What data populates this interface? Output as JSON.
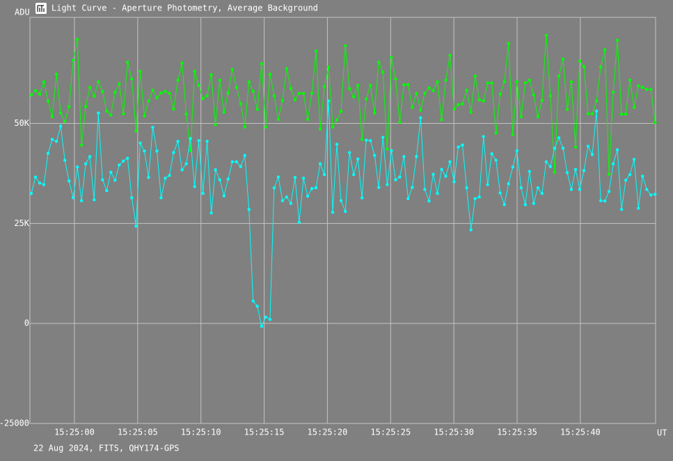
{
  "chart_data": {
    "type": "line",
    "title": "Light Curve - Aperture Photometry, Average Background",
    "y_label": "ADU",
    "x_label": "UT",
    "footer": "22 Aug 2024, FITS, QHY174-GPS",
    "grid": true,
    "xlim": [
      -3.52,
      45.95
    ],
    "ylim": [
      -25000,
      76500
    ],
    "xticks": [
      {
        "value": 0,
        "label": "15:25:00"
      },
      {
        "value": 5,
        "label": "15:25:05"
      },
      {
        "value": 10,
        "label": "15:25:10"
      },
      {
        "value": 15,
        "label": "15:25:15"
      },
      {
        "value": 20,
        "label": "15:25:20"
      },
      {
        "value": 25,
        "label": "15:25:25"
      },
      {
        "value": 30,
        "label": "15:25:30"
      },
      {
        "value": 35,
        "label": "15:25:35"
      },
      {
        "value": 40,
        "label": "15:25:40"
      }
    ],
    "yticks": [
      {
        "value": 50000,
        "label": "50K"
      },
      {
        "value": 25000,
        "label": "25K"
      },
      0,
      -25000
    ],
    "x": [
      -3.41,
      -3.08,
      -2.75,
      -2.42,
      -2.09,
      -1.76,
      -1.42,
      -1.09,
      -0.76,
      -0.43,
      -0.1,
      0.23,
      0.56,
      0.89,
      1.22,
      1.56,
      1.89,
      2.22,
      2.55,
      2.88,
      3.21,
      3.54,
      3.87,
      4.2,
      4.53,
      4.87,
      5.2,
      5.53,
      5.86,
      6.19,
      6.52,
      6.85,
      7.18,
      7.51,
      7.84,
      8.18,
      8.51,
      8.84,
      9.17,
      9.5,
      9.83,
      10.16,
      10.49,
      10.82,
      11.15,
      11.49,
      11.82,
      12.15,
      12.48,
      12.81,
      13.14,
      13.47,
      13.8,
      14.13,
      14.46,
      14.8,
      15.13,
      15.46,
      15.79,
      16.12,
      16.45,
      16.78,
      17.11,
      17.44,
      17.77,
      18.11,
      18.44,
      18.77,
      19.1,
      19.43,
      19.76,
      20.09,
      20.42,
      20.75,
      21.08,
      21.42,
      21.75,
      22.08,
      22.41,
      22.74,
      23.07,
      23.4,
      23.73,
      24.06,
      24.39,
      24.73,
      25.06,
      25.39,
      25.72,
      26.05,
      26.38,
      26.71,
      27.04,
      27.37,
      27.7,
      28.04,
      28.37,
      28.7,
      29.03,
      29.36,
      29.69,
      30.02,
      30.35,
      30.68,
      31.01,
      31.35,
      31.68,
      32.01,
      32.34,
      32.67,
      33.0,
      33.33,
      33.66,
      33.99,
      34.32,
      34.66,
      34.99,
      35.32,
      35.65,
      35.98,
      36.31,
      36.64,
      36.97,
      37.3,
      37.63,
      37.97,
      38.3,
      38.63,
      38.96,
      39.29,
      39.62,
      39.95,
      40.28,
      40.61,
      40.94,
      41.28,
      41.61,
      41.94,
      42.27,
      42.6,
      42.93,
      43.26,
      43.59,
      43.92,
      44.25,
      44.59,
      44.92,
      45.25,
      45.58,
      45.91
    ],
    "series": [
      {
        "color": "#00ff00",
        "values": [
          57100,
          58200,
          57300,
          60400,
          55600,
          51700,
          62300,
          52600,
          50500,
          54200,
          65800,
          71000,
          44600,
          54200,
          59000,
          56800,
          60400,
          58000,
          53100,
          52100,
          57800,
          59900,
          52400,
          65300,
          61100,
          48100,
          63000,
          51900,
          55600,
          58300,
          56400,
          57600,
          58000,
          57500,
          53600,
          60800,
          65100,
          52300,
          43200,
          63000,
          59500,
          56200,
          56900,
          62200,
          49700,
          60800,
          52800,
          57600,
          63500,
          59000,
          54900,
          49100,
          60400,
          58000,
          53500,
          64900,
          49100,
          62300,
          56900,
          51000,
          55700,
          63700,
          58700,
          55900,
          57500,
          57500,
          51000,
          57500,
          68100,
          48600,
          59200,
          64100,
          49100,
          50900,
          53000,
          69400,
          58700,
          56600,
          59500,
          46000,
          56100,
          59500,
          52600,
          65300,
          62800,
          43600,
          66500,
          61100,
          50300,
          59700,
          59700,
          54000,
          57500,
          53300,
          57500,
          58900,
          58200,
          60400,
          50900,
          60800,
          67000,
          53600,
          54700,
          54900,
          58300,
          52800,
          61800,
          55900,
          55600,
          60100,
          60100,
          47600,
          57300,
          60400,
          70000,
          47200,
          60400,
          51700,
          60100,
          60800,
          57100,
          51700,
          55700,
          72000,
          56900,
          37800,
          61800,
          66100,
          53500,
          60400,
          44100,
          65600,
          64200,
          52400,
          52400,
          55600,
          64100,
          68400,
          37300,
          57800,
          70800,
          52300,
          52300,
          60800,
          54000,
          59400,
          59000,
          58500,
          58500,
          50200
        ]
      },
      {
        "color": "#00ffff",
        "values": [
          32500,
          36600,
          35100,
          34700,
          42500,
          46000,
          45500,
          49300,
          40800,
          35600,
          31400,
          39100,
          30700,
          39900,
          41700,
          30900,
          52600,
          35900,
          33200,
          37800,
          35800,
          39600,
          40600,
          41300,
          31400,
          24300,
          45100,
          43100,
          36500,
          49000,
          43100,
          31400,
          36300,
          37000,
          42700,
          45500,
          38400,
          39900,
          46200,
          34200,
          45700,
          32500,
          45500,
          27600,
          38400,
          35900,
          31900,
          36100,
          40400,
          40400,
          39200,
          42000,
          28500,
          5600,
          4300,
          -700,
          1600,
          1000,
          33900,
          36600,
          30700,
          31600,
          30000,
          36500,
          25300,
          36300,
          31800,
          33700,
          33900,
          39900,
          37200,
          55600,
          27800,
          44800,
          30700,
          28000,
          42700,
          37200,
          41100,
          31400,
          45800,
          45700,
          42000,
          34000,
          46500,
          34700,
          43200,
          35900,
          36600,
          41700,
          31200,
          34000,
          41700,
          51400,
          33500,
          30600,
          37300,
          32500,
          38500,
          36800,
          40400,
          35400,
          44100,
          44600,
          33900,
          23400,
          31200,
          31600,
          46700,
          34700,
          42400,
          40800,
          32600,
          29700,
          34900,
          39100,
          43200,
          33900,
          29700,
          38000,
          30000,
          33900,
          32500,
          40400,
          39200,
          43800,
          46400,
          43800,
          37700,
          33500,
          38500,
          33500,
          38200,
          44300,
          42200,
          53100,
          30700,
          30600,
          33000,
          39900,
          43400,
          28500,
          35800,
          37200,
          41000,
          28800,
          36800,
          33500,
          32100,
          32300
        ]
      }
    ]
  }
}
